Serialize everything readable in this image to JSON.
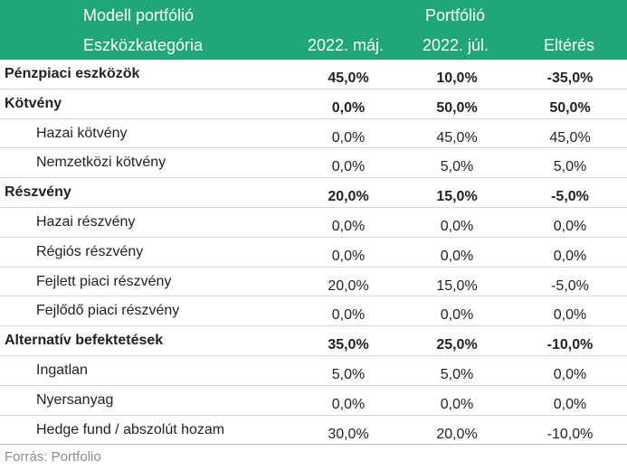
{
  "header": {
    "model_title": "Modell portfólió",
    "category_label": "Eszközkategória",
    "portfolio_label": "Portfólió",
    "col_may": "2022. máj.",
    "col_jul": "2022. júl.",
    "col_diff": "Eltérés"
  },
  "rows": [
    {
      "label": "Pénzpiaci eszközök",
      "may": "45,0%",
      "jul": "10,0%",
      "diff": "-35,0%"
    },
    {
      "label": "Kötvény",
      "may": "0,0%",
      "jul": "50,0%",
      "diff": "50,0%"
    },
    {
      "label": "Hazai kötvény",
      "may": "0,0%",
      "jul": "45,0%",
      "diff": "45,0%"
    },
    {
      "label": "Nemzetközi kötvény",
      "may": "0,0%",
      "jul": "5,0%",
      "diff": "5,0%"
    },
    {
      "label": "Részvény",
      "may": "20,0%",
      "jul": "15,0%",
      "diff": "-5,0%"
    },
    {
      "label": "Hazai részvény",
      "may": "0,0%",
      "jul": "0,0%",
      "diff": "0,0%"
    },
    {
      "label": "Régiós részvény",
      "may": "0,0%",
      "jul": "0,0%",
      "diff": "0,0%"
    },
    {
      "label": "Fejlett piaci részvény",
      "may": "20,0%",
      "jul": "15,0%",
      "diff": "-5,0%"
    },
    {
      "label": "Fejlődő piaci részvény",
      "may": "0,0%",
      "jul": "0,0%",
      "diff": "0,0%"
    },
    {
      "label": "Alternatív befektetések",
      "may": "35,0%",
      "jul": "25,0%",
      "diff": "-10,0%"
    },
    {
      "label": "Ingatlan",
      "may": "5,0%",
      "jul": "5,0%",
      "diff": "0,0%"
    },
    {
      "label": "Nyersanyag",
      "may": "0,0%",
      "jul": "0,0%",
      "diff": "0,0%"
    },
    {
      "label": "Hedge fund / abszolút hozam",
      "may": "30,0%",
      "jul": "20,0%",
      "diff": "-10,0%"
    }
  ],
  "source": "Forrás: Portfolio"
}
